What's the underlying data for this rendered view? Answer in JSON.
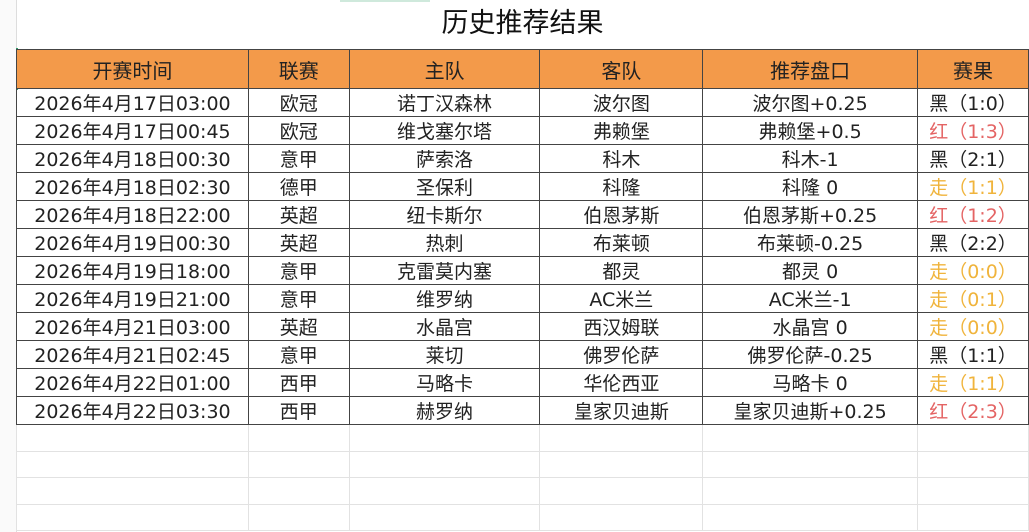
{
  "title": "历史推荐结果",
  "columns": [
    "开赛时间",
    "联赛",
    "主队",
    "客队",
    "推荐盘口",
    "赛果"
  ],
  "colors": {
    "header_bg": "#f39a4a",
    "win_black": "#222222",
    "lose_red": "#e46464",
    "draw_yellow": "#f0b43c"
  },
  "rows": [
    {
      "time": "2026年4月17日03:00",
      "league": "欧冠",
      "home": "诺丁汉森林",
      "away": "波尔图",
      "pick": "波尔图+0.25",
      "result": "黑（1:0）",
      "status": "black"
    },
    {
      "time": "2026年4月17日00:45",
      "league": "欧冠",
      "home": "维戈塞尔塔",
      "away": "弗赖堡",
      "pick": "弗赖堡+0.5",
      "result": "红（1:3）",
      "status": "red"
    },
    {
      "time": "2026年4月18日00:30",
      "league": "意甲",
      "home": "萨索洛",
      "away": "科木",
      "pick": "科木-1",
      "result": "黑（2:1）",
      "status": "black"
    },
    {
      "time": "2026年4月18日02:30",
      "league": "德甲",
      "home": "圣保利",
      "away": "科隆",
      "pick": "科隆 0",
      "result": "走（1:1）",
      "status": "draw"
    },
    {
      "time": "2026年4月18日22:00",
      "league": "英超",
      "home": "纽卡斯尔",
      "away": "伯恩茅斯",
      "pick": "伯恩茅斯+0.25",
      "result": "红（1:2）",
      "status": "red"
    },
    {
      "time": "2026年4月19日00:30",
      "league": "英超",
      "home": "热刺",
      "away": "布莱顿",
      "pick": "布莱顿-0.25",
      "result": "黑（2:2）",
      "status": "black"
    },
    {
      "time": "2026年4月19日18:00",
      "league": "意甲",
      "home": "克雷莫内塞",
      "away": "都灵",
      "pick": "都灵 0",
      "result": "走（0:0）",
      "status": "draw"
    },
    {
      "time": "2026年4月19日21:00",
      "league": "意甲",
      "home": "维罗纳",
      "away": "AC米兰",
      "pick": "AC米兰-1",
      "result": "走（0:1）",
      "status": "draw"
    },
    {
      "time": "2026年4月21日03:00",
      "league": "英超",
      "home": "水晶宫",
      "away": "西汉姆联",
      "pick": "水晶宫 0",
      "result": "走（0:0）",
      "status": "draw"
    },
    {
      "time": "2026年4月21日02:45",
      "league": "意甲",
      "home": "莱切",
      "away": "佛罗伦萨",
      "pick": "佛罗伦萨-0.25",
      "result": "黑（1:1）",
      "status": "black"
    },
    {
      "time": "2026年4月22日01:00",
      "league": "西甲",
      "home": "马略卡",
      "away": "华伦西亚",
      "pick": "马略卡 0",
      "result": "走（1:1）",
      "status": "draw"
    },
    {
      "time": "2026年4月22日03:30",
      "league": "西甲",
      "home": "赫罗纳",
      "away": "皇家贝迪斯",
      "pick": "皇家贝迪斯+0.25",
      "result": "红（2:3）",
      "status": "red"
    }
  ]
}
